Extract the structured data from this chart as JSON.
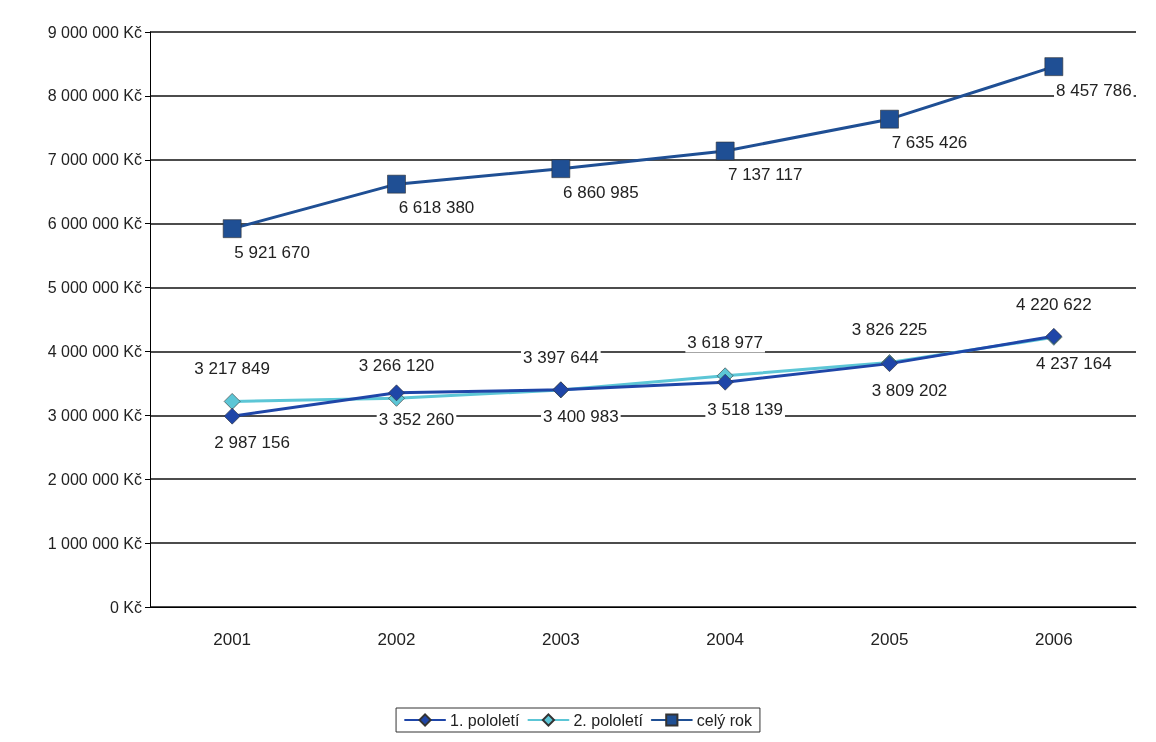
{
  "chart_data": {
    "type": "line",
    "categories": [
      "2001",
      "2002",
      "2003",
      "2004",
      "2005",
      "2006"
    ],
    "series": [
      {
        "name": "1. pololetí",
        "color": "#1f46a8",
        "marker": "diamond",
        "values": [
          2987156,
          3352260,
          3400983,
          3518139,
          3809202,
          4237164
        ],
        "value_labels": [
          "2 987 156",
          "3 352 260",
          "3 400 983",
          "3 518 139",
          "3 809 202",
          "4 237 164"
        ]
      },
      {
        "name": "2. pololetí",
        "color": "#5cc6d6",
        "marker": "diamond",
        "values": [
          3217849,
          3266120,
          3397644,
          3618977,
          3826225,
          4220622
        ],
        "value_labels": [
          "3 217 849",
          "3 266 120",
          "3 397 644",
          "3 618 977",
          "3 826 225",
          "4 220 622"
        ]
      },
      {
        "name": "celý rok",
        "color": "#1f4f94",
        "marker": "square",
        "values": [
          5921670,
          6618380,
          6860985,
          7137117,
          7635426,
          8457786
        ],
        "value_labels": [
          "5 921 670",
          "6 618 380",
          "6 860 985",
          "7 137 117",
          "7 635 426",
          "8 457 786"
        ]
      }
    ],
    "ylim": [
      0,
      9000000
    ],
    "yticks": [
      {
        "value": 0,
        "label": "0 Kč"
      },
      {
        "value": 1000000,
        "label": "1 000 000 Kč"
      },
      {
        "value": 2000000,
        "label": "2 000 000 Kč"
      },
      {
        "value": 3000000,
        "label": "3 000 000 Kč"
      },
      {
        "value": 4000000,
        "label": "4 000 000 Kč"
      },
      {
        "value": 5000000,
        "label": "5 000 000 Kč"
      },
      {
        "value": 6000000,
        "label": "6 000 000 Kč"
      },
      {
        "value": 7000000,
        "label": "7 000 000 Kč"
      },
      {
        "value": 8000000,
        "label": "8 000 000 Kč"
      },
      {
        "value": 9000000,
        "label": "9 000 000 Kč"
      }
    ],
    "grid": "y",
    "legend": "bottom",
    "line_style": "solid"
  }
}
